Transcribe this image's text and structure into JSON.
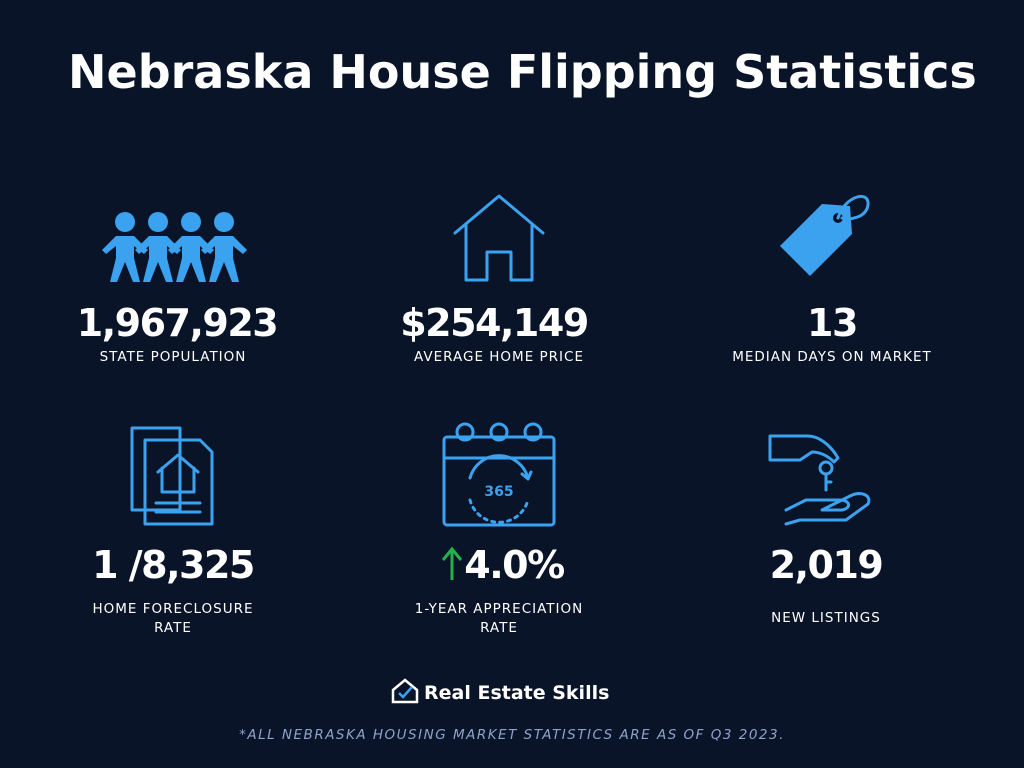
{
  "header": {
    "title": "Nebraska House Flipping Statistics"
  },
  "stats": [
    {
      "value": "1,967,923",
      "label": [
        "STATE POPULATION"
      ]
    },
    {
      "value": "$254,149",
      "label": [
        "AVERAGE HOME PRICE"
      ]
    },
    {
      "value": "13",
      "label": [
        "MEDIAN DAYS ON MARKET"
      ]
    },
    {
      "value": "1 /8,325",
      "label": [
        "HOME FORECLOSURE",
        "RATE"
      ]
    },
    {
      "value": "4.0%",
      "label": [
        "1-YEAR APPRECIATION",
        "RATE"
      ]
    },
    {
      "value": "2,019",
      "label": [
        "NEW LISTINGS"
      ]
    }
  ],
  "footer": {
    "brand": "Real Estate Skills",
    "note": "*ALL NEBRASKA HOUSING MARKET STATISTICS ARE AS OF Q3 2023."
  }
}
